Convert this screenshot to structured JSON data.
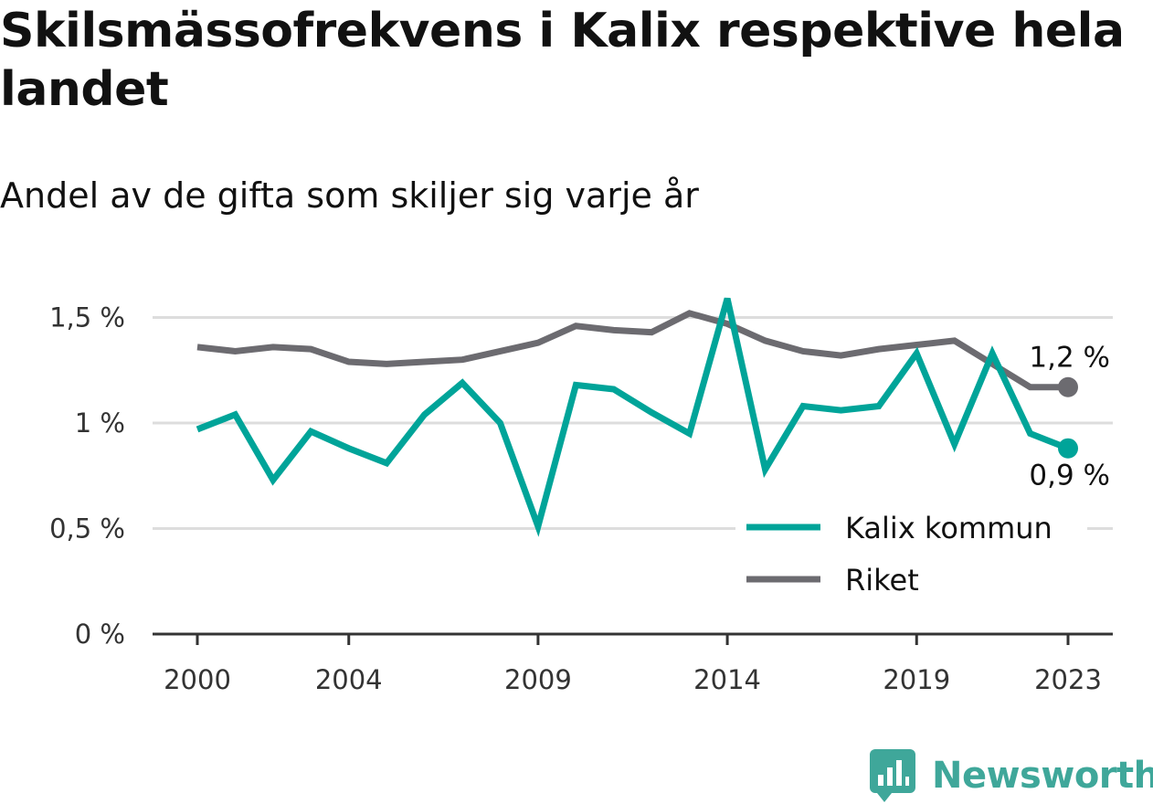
{
  "title": "Skilsmässofrekvens i Kalix respektive hela landet",
  "subtitle": "Andel av de gifta som skiljer sig varje år",
  "brand": {
    "name": "Newsworthy",
    "icon": "newsworthy-logo-icon",
    "color": "#3fa79a"
  },
  "chart_data": {
    "type": "line",
    "x": [
      2000,
      2001,
      2002,
      2003,
      2004,
      2005,
      2006,
      2007,
      2008,
      2009,
      2010,
      2011,
      2012,
      2013,
      2014,
      2015,
      2016,
      2017,
      2018,
      2019,
      2020,
      2021,
      2022,
      2023
    ],
    "x_ticks": [
      "2000",
      "2004",
      "2009",
      "2014",
      "2019",
      "2023"
    ],
    "y_ticks": [
      "0 %",
      "0,5 %",
      "1 %",
      "1,5 %"
    ],
    "ylim": [
      0,
      1.6
    ],
    "grid": true,
    "legend_position": "bottom-right",
    "series": [
      {
        "name": "Kalix kommun",
        "color": "#00a499",
        "values": [
          0.97,
          1.04,
          0.73,
          0.96,
          0.88,
          0.81,
          1.04,
          1.19,
          1.0,
          0.51,
          1.18,
          1.16,
          1.05,
          0.95,
          1.59,
          0.78,
          1.08,
          1.06,
          1.08,
          1.33,
          0.9,
          1.33,
          0.95,
          0.88
        ],
        "end_label": "0,9 %"
      },
      {
        "name": "Riket",
        "color": "#6c6b70",
        "values": [
          1.36,
          1.34,
          1.36,
          1.35,
          1.29,
          1.28,
          1.29,
          1.3,
          1.34,
          1.38,
          1.46,
          1.44,
          1.43,
          1.52,
          1.47,
          1.39,
          1.34,
          1.32,
          1.35,
          1.37,
          1.39,
          1.28,
          1.17,
          1.17
        ],
        "end_label": "1,2 %"
      }
    ]
  }
}
